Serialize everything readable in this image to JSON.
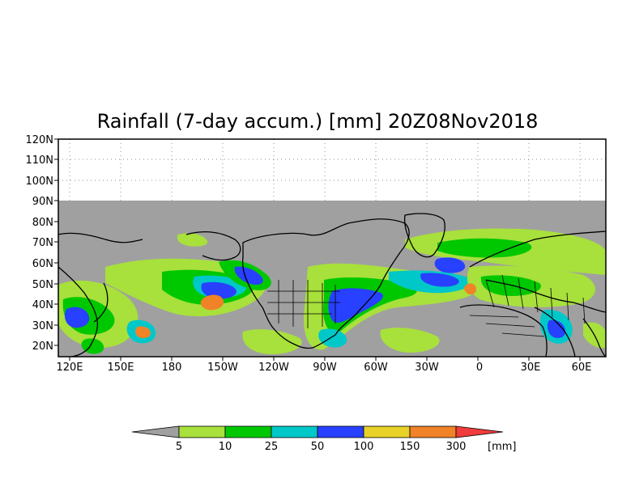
{
  "title": "Rainfall (7-day accum.) [mm] 20Z08Nov2018",
  "lat_labels": [
    "120N",
    "110N",
    "100N",
    "90N",
    "80N",
    "70N",
    "60N",
    "50N",
    "40N",
    "30N",
    "20N"
  ],
  "lon_labels": [
    "120E",
    "150E",
    "180",
    "150W",
    "120W",
    "90W",
    "60W",
    "30W",
    "0",
    "30E",
    "60E"
  ],
  "colorbar": {
    "ticks": [
      "5",
      "10",
      "25",
      "50",
      "100",
      "150",
      "300"
    ],
    "unit": "[mm]",
    "colors": [
      "#a0a0a0",
      "#a8e03c",
      "#00c800",
      "#00c8c8",
      "#2840ff",
      "#e8d228",
      "#f08228",
      "#f03c3c"
    ]
  },
  "colors": {
    "no_data": "#a0a0a0",
    "green_light": "#a8e03c",
    "green": "#00c800",
    "cyan": "#00c8c8",
    "blue": "#2840ff",
    "yellow": "#e8d228",
    "orange": "#f08228",
    "red": "#f03c3c"
  }
}
